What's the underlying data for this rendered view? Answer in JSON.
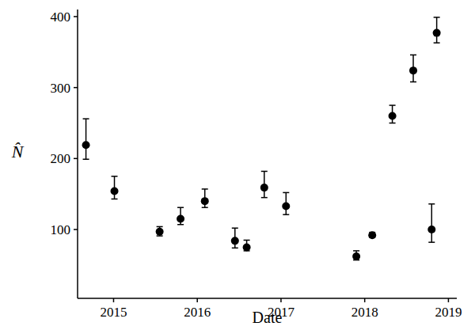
{
  "chart_data": {
    "type": "scatter",
    "x_label": "Date",
    "y_label": "N̂",
    "x": [
      2014.67,
      2015.01,
      2015.55,
      2015.8,
      2016.09,
      2016.45,
      2016.59,
      2016.8,
      2017.06,
      2017.9,
      2018.09,
      2018.33,
      2018.58,
      2018.86,
      2018.8
    ],
    "values": [
      219,
      154,
      97,
      115,
      140,
      84,
      75,
      159,
      133,
      62,
      92,
      260,
      324,
      377,
      100
    ],
    "lower": [
      199,
      143,
      91,
      107,
      131,
      74,
      70,
      145,
      121,
      57,
      89,
      250,
      308,
      363,
      82
    ],
    "upper": [
      256,
      175,
      104,
      131,
      157,
      102,
      85,
      182,
      152,
      70,
      96,
      275,
      346,
      399,
      136
    ],
    "color": "#000000",
    "marker": "circle",
    "xlim": [
      2014.57,
      2019.1
    ],
    "xticks": [
      2015,
      2016,
      2017,
      2018,
      2019
    ],
    "ylim": [
      3,
      410
    ],
    "yticks": [
      100,
      200,
      300,
      400
    ],
    "grid": false
  }
}
